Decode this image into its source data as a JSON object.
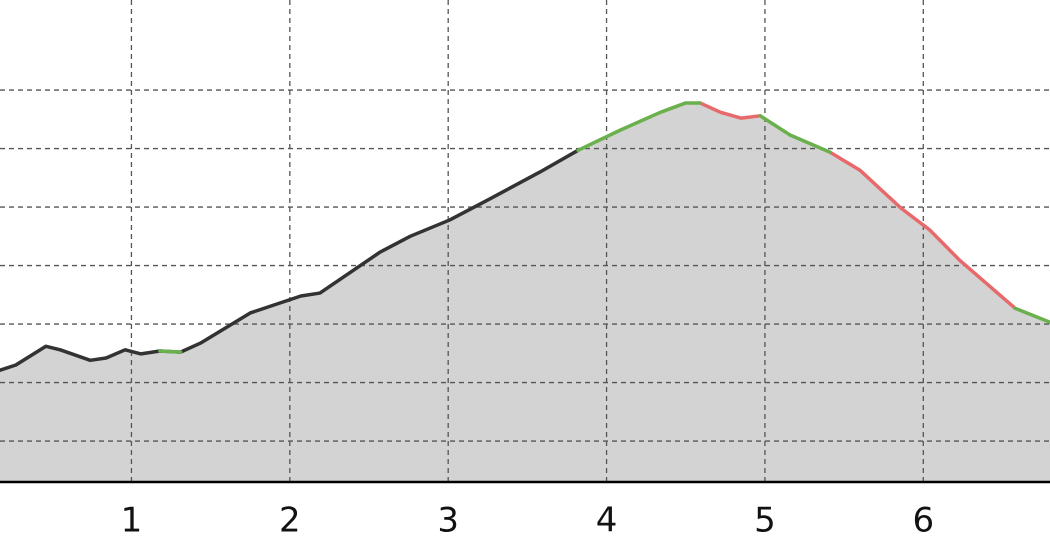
{
  "chart_data": {
    "type": "area",
    "x": [
      0.17,
      0.27,
      0.46,
      0.55,
      0.74,
      0.84,
      0.96,
      1.06,
      1.18,
      1.31,
      1.44,
      1.75,
      2.07,
      2.19,
      2.57,
      2.76,
      3.01,
      3.27,
      3.58,
      3.82,
      4.09,
      4.34,
      4.5,
      4.59,
      4.72,
      4.85,
      4.97,
      5.16,
      5.41,
      5.6,
      5.86,
      6.04,
      6.23,
      6.58,
      6.8
    ],
    "series": [
      {
        "color": "#333333",
        "values": [
          2.21,
          2.3,
          2.62,
          2.56,
          2.38,
          2.42,
          2.56,
          2.49,
          2.54,
          2.52,
          2.68,
          3.19,
          3.48,
          3.53,
          4.23,
          4.5,
          4.78,
          5.15,
          5.6,
          5.97,
          null,
          null,
          null,
          null,
          null,
          null,
          null,
          null,
          null,
          null,
          null,
          null,
          null,
          null,
          null
        ]
      },
      {
        "color": "#e8696b",
        "values": [
          null,
          null,
          null,
          null,
          null,
          null,
          null,
          null,
          null,
          null,
          null,
          null,
          null,
          null,
          null,
          null,
          null,
          null,
          null,
          null,
          null,
          null,
          null,
          6.78,
          6.62,
          6.52,
          6.56,
          null,
          5.94,
          5.63,
          4.98,
          4.61,
          4.09,
          3.27,
          null
        ]
      },
      {
        "color": "#6ab04c",
        "values": [
          null,
          null,
          null,
          null,
          null,
          null,
          null,
          null,
          2.54,
          2.52,
          null,
          null,
          null,
          null,
          null,
          null,
          null,
          null,
          null,
          5.97,
          6.32,
          6.62,
          6.78,
          6.78,
          null,
          null,
          6.56,
          6.23,
          5.94,
          null,
          null,
          null,
          null,
          3.27,
          3.03
        ]
      }
    ],
    "fill": "#d3d3d3",
    "xlim": [
      0.17,
      6.8
    ],
    "xticks": [
      1,
      2,
      3,
      4,
      5,
      6
    ],
    "ylim": [
      0.3,
      8.54
    ],
    "yticks": [
      1,
      2,
      3,
      4,
      5,
      6,
      7
    ],
    "grid": true
  }
}
